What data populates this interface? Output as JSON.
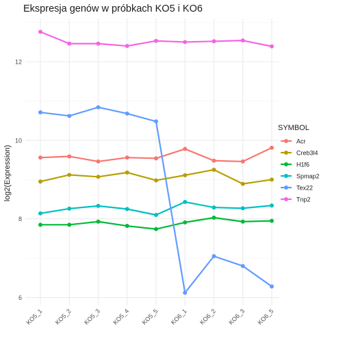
{
  "chart_data": {
    "type": "line",
    "title": "Ekspresja genów w próbkach KO5 i KO6",
    "xlabel": "",
    "ylabel": "log2(Expression)",
    "categories": [
      "KO5_1",
      "KO5_2",
      "KO5_3",
      "KO5_4",
      "KO5_5",
      "KO6_1",
      "KO6_2",
      "KO6_3",
      "KO6_5"
    ],
    "ylim": [
      5.8,
      13.1
    ],
    "yticks": [
      6,
      8,
      10,
      12
    ],
    "grid": true,
    "legend": {
      "title": "SYMBOL",
      "placement": "right"
    },
    "series": [
      {
        "name": "Acr",
        "color": "#F8766D",
        "values": [
          9.56,
          9.59,
          9.46,
          9.56,
          9.54,
          9.78,
          9.48,
          9.46,
          9.81
        ]
      },
      {
        "name": "Creb3l4",
        "color": "#B79F00",
        "values": [
          8.95,
          9.12,
          9.07,
          9.18,
          8.98,
          9.11,
          9.25,
          8.89,
          9.0
        ]
      },
      {
        "name": "H1f6",
        "color": "#00BA38",
        "values": [
          7.85,
          7.85,
          7.93,
          7.82,
          7.74,
          7.91,
          8.03,
          7.93,
          7.95
        ]
      },
      {
        "name": "Spmap2",
        "color": "#00BFC4",
        "values": [
          8.14,
          8.26,
          8.33,
          8.25,
          8.1,
          8.43,
          8.29,
          8.27,
          8.34
        ]
      },
      {
        "name": "Tex22",
        "color": "#619CFF",
        "values": [
          10.71,
          10.62,
          10.84,
          10.68,
          10.48,
          6.12,
          7.05,
          6.8,
          6.28
        ]
      },
      {
        "name": "Tnp2",
        "color": "#F564E3",
        "values": [
          12.76,
          12.46,
          12.46,
          12.4,
          12.53,
          12.5,
          12.52,
          12.54,
          12.39
        ]
      }
    ]
  }
}
